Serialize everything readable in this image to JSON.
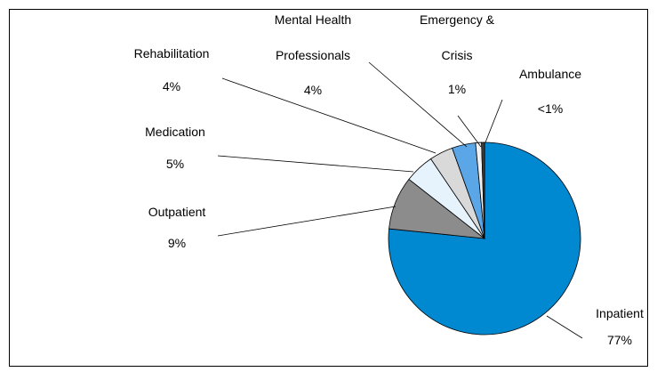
{
  "chart_data": {
    "type": "pie",
    "categories": [
      "Inpatient",
      "Outpatient",
      "Medication",
      "Rehabilitation",
      "Mental Health Professionals",
      "Emergency & Crisis",
      "Ambulance"
    ],
    "values": [
      77,
      9,
      5,
      4,
      4,
      1,
      0.5
    ],
    "value_labels": [
      "77%",
      "9%",
      "5%",
      "4%",
      "4%",
      "1%",
      "<1%"
    ],
    "colors": [
      "#0088d1",
      "#8c8c8c",
      "#e6f2fc",
      "#d9d9d9",
      "#5aa6e6",
      "#f2f2f2",
      "#404040"
    ]
  }
}
